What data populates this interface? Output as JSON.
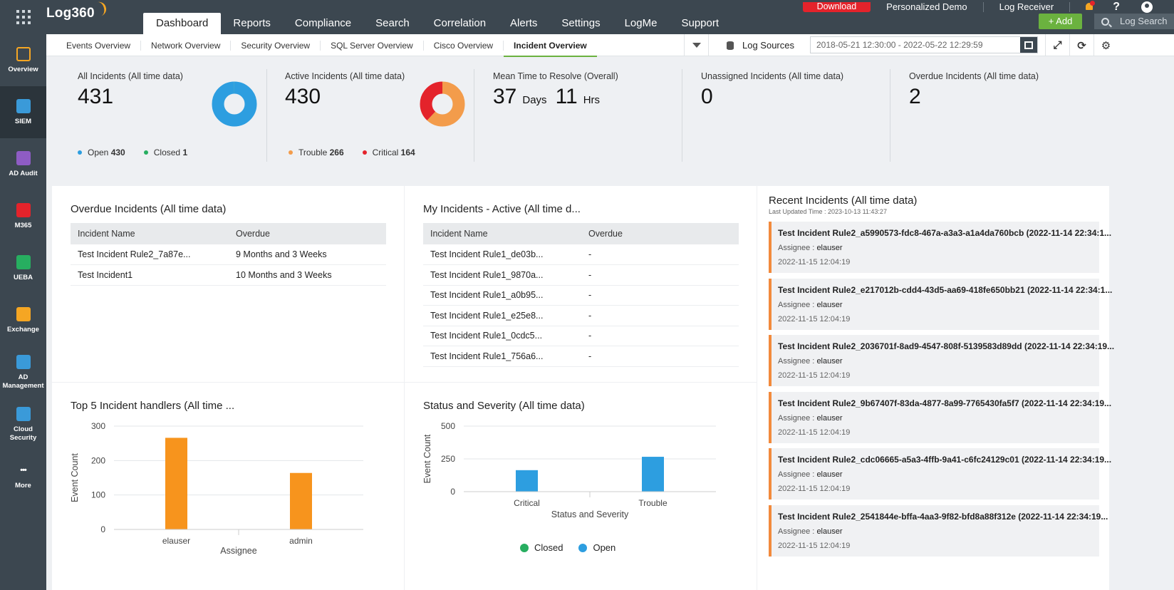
{
  "app": {
    "name": "Log360"
  },
  "rail": [
    {
      "label": "Overview",
      "icon": "overview-grid-icon",
      "color": "#f5a623"
    },
    {
      "label": "SIEM",
      "icon": "siem-shield-icon",
      "color": "#3a9ad9"
    },
    {
      "label": "AD Audit",
      "icon": "ad-audit-icon",
      "color": "#8e5cc4"
    },
    {
      "label": "M365",
      "icon": "m365-icon",
      "color": "#e4232b"
    },
    {
      "label": "UEBA",
      "icon": "ueba-eye-icon",
      "color": "#27ae60"
    },
    {
      "label": "Exchange",
      "icon": "exchange-mail-icon",
      "color": "#f5a623"
    },
    {
      "label": "AD Management",
      "icon": "ad-management-icon",
      "color": "#3a9ad9"
    },
    {
      "label": "Cloud Security",
      "icon": "cloud-security-icon",
      "color": "#3a9ad9"
    },
    {
      "label": "More",
      "icon": "more-dots-icon",
      "color": "#3c4750"
    }
  ],
  "main_tabs": [
    "Dashboard",
    "Reports",
    "Compliance",
    "Search",
    "Correlation",
    "Alerts",
    "Settings",
    "LogMe",
    "Support"
  ],
  "top_right": {
    "download": "Download",
    "demo": "Personalized Demo",
    "receiver": "Log Receiver",
    "help": "?",
    "add": "+ Add",
    "search_placeholder": "Log Search"
  },
  "sub_tabs": [
    "Events Overview",
    "Network Overview",
    "Security Overview",
    "SQL Server Overview",
    "Cisco Overview",
    "Incident Overview"
  ],
  "toolbar": {
    "log_sources": "Log Sources",
    "date_range": "2018-05-21 12:30:00 - 2022-05-22 12:29:59"
  },
  "kpis": {
    "all": {
      "label": "All Incidents (All time data)",
      "value": "431",
      "legend": [
        {
          "label": "Open",
          "value": "430",
          "color": "#2d9ee0"
        },
        {
          "label": "Closed",
          "value": "1",
          "color": "#27ae60"
        }
      ]
    },
    "active": {
      "label": "Active Incidents (All time data)",
      "value": "430",
      "legend": [
        {
          "label": "Trouble",
          "value": "266",
          "color": "#f39c4b"
        },
        {
          "label": "Critical",
          "value": "164",
          "color": "#e4232b"
        }
      ]
    },
    "mttr": {
      "label": "Mean Time to Resolve (Overall)",
      "days": "37",
      "days_unit": "Days",
      "hours": "11",
      "hours_unit": "Hrs"
    },
    "unassigned": {
      "label": "Unassigned Incidents (All time data)",
      "value": "0"
    },
    "overdue": {
      "label": "Overdue Incidents (All time data)",
      "value": "2"
    }
  },
  "overdue_panel": {
    "title": "Overdue Incidents (All time data)",
    "columns": [
      "Incident Name",
      "Overdue"
    ],
    "rows": [
      [
        "Test Incident Rule2_7a87e...",
        "9 Months and 3 Weeks"
      ],
      [
        "Test Incident1",
        "10 Months and 3 Weeks"
      ]
    ]
  },
  "my_panel": {
    "title": "My Incidents - Active (All time d...",
    "columns": [
      "Incident Name",
      "Overdue"
    ],
    "rows": [
      [
        "Test Incident Rule1_de03b...",
        "-"
      ],
      [
        "Test Incident Rule1_9870a...",
        "-"
      ],
      [
        "Test Incident Rule1_a0b95...",
        "-"
      ],
      [
        "Test Incident Rule1_e25e8...",
        "-"
      ],
      [
        "Test Incident Rule1_0cdc5...",
        "-"
      ],
      [
        "Test Incident Rule1_756a6...",
        "-"
      ]
    ]
  },
  "recent": {
    "title": "Recent Incidents (All time data)",
    "updated": "Last Updated Time : 2023-10-13 11:43:27",
    "assignee_label": "Assignee :",
    "items": [
      {
        "title": "Test Incident Rule2_a5990573-fdc8-467a-a3a3-a1a4da760bcb (2022-11-14 22:34:1...",
        "assignee": "elauser",
        "time": "2022-11-15 12:04:19"
      },
      {
        "title": "Test Incident Rule2_e217012b-cdd4-43d5-aa69-418fe650bb21 (2022-11-14 22:34:1...",
        "assignee": "elauser",
        "time": "2022-11-15 12:04:19"
      },
      {
        "title": "Test Incident Rule2_2036701f-8ad9-4547-808f-5139583d89dd (2022-11-14 22:34:19...",
        "assignee": "elauser",
        "time": "2022-11-15 12:04:19"
      },
      {
        "title": "Test Incident Rule2_9b67407f-83da-4877-8a99-7765430fa5f7 (2022-11-14 22:34:19...",
        "assignee": "elauser",
        "time": "2022-11-15 12:04:19"
      },
      {
        "title": "Test Incident Rule2_cdc06665-a5a3-4ffb-9a41-c6fc24129c01 (2022-11-14 22:34:19...",
        "assignee": "elauser",
        "time": "2022-11-15 12:04:19"
      },
      {
        "title": "Test Incident Rule2_2541844e-bffa-4aa3-9f82-bfd8a88f312e (2022-11-14 22:34:19...",
        "assignee": "elauser",
        "time": "2022-11-15 12:04:19"
      }
    ]
  },
  "chart_data": [
    {
      "type": "bar",
      "title": "Top 5 Incident handlers (All time ...",
      "categories": [
        "elauser",
        "admin"
      ],
      "values": [
        266,
        164
      ],
      "xlabel": "Assignee",
      "ylabel": "Event Count",
      "ylim": [
        0,
        300
      ],
      "yticks": [
        0,
        100,
        200,
        300
      ],
      "color": "#f7941d"
    },
    {
      "type": "bar",
      "title": "Status and Severity (All time data)",
      "categories": [
        "Critical",
        "Trouble"
      ],
      "series": [
        {
          "name": "Closed",
          "values": [
            0,
            0
          ],
          "color": "#27ae60"
        },
        {
          "name": "Open",
          "values": [
            164,
            266
          ],
          "color": "#2d9ee0"
        }
      ],
      "xlabel": "Status and Severity",
      "ylabel": "Event Count",
      "ylim": [
        0,
        500
      ],
      "yticks": [
        0,
        250,
        500
      ],
      "legend": "bottom"
    }
  ]
}
